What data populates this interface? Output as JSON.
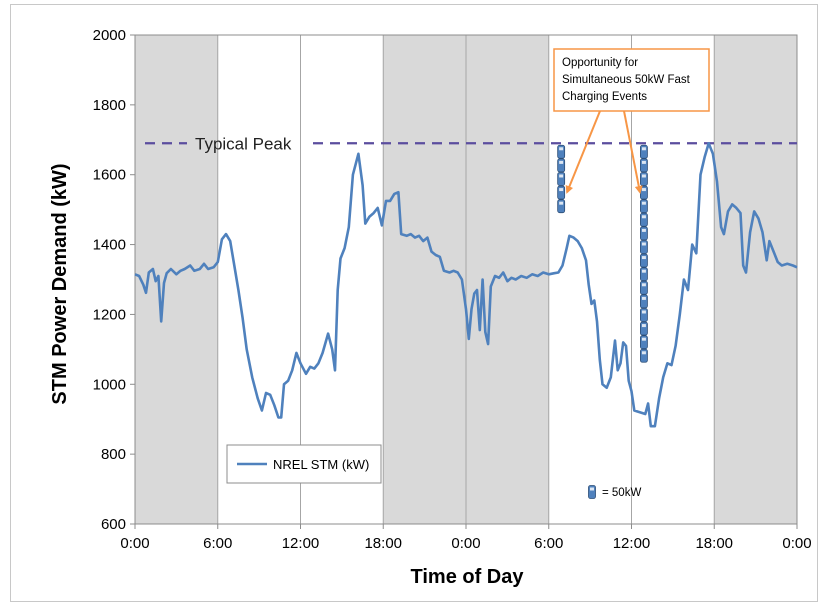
{
  "chart_data": {
    "type": "line",
    "xlabel": "Time of Day",
    "ylabel": "STM Power Demand (kW)",
    "x_ticks": [
      "0:00",
      "6:00",
      "12:00",
      "18:00",
      "0:00",
      "6:00",
      "12:00",
      "18:00",
      "0:00"
    ],
    "x_range_hours": [
      0,
      48
    ],
    "ylim": [
      600,
      2000
    ],
    "y_ticks": [
      600,
      800,
      1000,
      1200,
      1400,
      1600,
      1800,
      2000
    ],
    "shaded_periods_hours": [
      [
        0,
        6
      ],
      [
        18,
        30
      ],
      [
        42,
        48
      ]
    ],
    "grid": false,
    "legend_position": "bottom-left",
    "series": [
      {
        "name": "NREL STM (kW)",
        "color": "#4f81bd",
        "points": [
          [
            0.0,
            1315
          ],
          [
            0.3,
            1310
          ],
          [
            0.6,
            1285
          ],
          [
            0.8,
            1262
          ],
          [
            1.0,
            1320
          ],
          [
            1.3,
            1330
          ],
          [
            1.5,
            1295
          ],
          [
            1.7,
            1310
          ],
          [
            1.9,
            1180
          ],
          [
            2.1,
            1290
          ],
          [
            2.3,
            1318
          ],
          [
            2.6,
            1330
          ],
          [
            3.0,
            1315
          ],
          [
            3.3,
            1325
          ],
          [
            3.6,
            1330
          ],
          [
            4.0,
            1340
          ],
          [
            4.3,
            1325
          ],
          [
            4.7,
            1330
          ],
          [
            5.0,
            1345
          ],
          [
            5.3,
            1330
          ],
          [
            5.7,
            1335
          ],
          [
            6.0,
            1350
          ],
          [
            6.3,
            1415
          ],
          [
            6.6,
            1430
          ],
          [
            6.9,
            1410
          ],
          [
            7.2,
            1340
          ],
          [
            7.5,
            1270
          ],
          [
            7.8,
            1190
          ],
          [
            8.1,
            1100
          ],
          [
            8.5,
            1020
          ],
          [
            8.9,
            960
          ],
          [
            9.2,
            925
          ],
          [
            9.5,
            975
          ],
          [
            9.8,
            970
          ],
          [
            10.1,
            940
          ],
          [
            10.4,
            905
          ],
          [
            10.6,
            905
          ],
          [
            10.8,
            1000
          ],
          [
            11.1,
            1010
          ],
          [
            11.4,
            1040
          ],
          [
            11.7,
            1090
          ],
          [
            12.0,
            1060
          ],
          [
            12.4,
            1030
          ],
          [
            12.7,
            1050
          ],
          [
            13.0,
            1045
          ],
          [
            13.3,
            1060
          ],
          [
            13.6,
            1090
          ],
          [
            14.0,
            1145
          ],
          [
            14.3,
            1100
          ],
          [
            14.5,
            1040
          ],
          [
            14.7,
            1270
          ],
          [
            14.9,
            1360
          ],
          [
            15.2,
            1390
          ],
          [
            15.5,
            1450
          ],
          [
            15.8,
            1600
          ],
          [
            16.2,
            1660
          ],
          [
            16.5,
            1570
          ],
          [
            16.7,
            1460
          ],
          [
            17.0,
            1480
          ],
          [
            17.3,
            1490
          ],
          [
            17.6,
            1505
          ],
          [
            17.9,
            1455
          ],
          [
            18.2,
            1525
          ],
          [
            18.5,
            1525
          ],
          [
            18.8,
            1545
          ],
          [
            19.1,
            1550
          ],
          [
            19.3,
            1430
          ],
          [
            19.7,
            1425
          ],
          [
            20.0,
            1430
          ],
          [
            20.3,
            1420
          ],
          [
            20.6,
            1425
          ],
          [
            20.9,
            1410
          ],
          [
            21.2,
            1420
          ],
          [
            21.5,
            1380
          ],
          [
            21.8,
            1370
          ],
          [
            22.1,
            1365
          ],
          [
            22.4,
            1325
          ],
          [
            22.8,
            1320
          ],
          [
            23.1,
            1325
          ],
          [
            23.4,
            1320
          ],
          [
            23.7,
            1300
          ],
          [
            24.0,
            1215
          ],
          [
            24.2,
            1130
          ],
          [
            24.4,
            1215
          ],
          [
            24.6,
            1260
          ],
          [
            24.8,
            1270
          ],
          [
            25.0,
            1155
          ],
          [
            25.2,
            1300
          ],
          [
            25.4,
            1150
          ],
          [
            25.6,
            1115
          ],
          [
            25.8,
            1280
          ],
          [
            26.1,
            1310
          ],
          [
            26.4,
            1305
          ],
          [
            26.7,
            1320
          ],
          [
            27.0,
            1295
          ],
          [
            27.3,
            1305
          ],
          [
            27.6,
            1300
          ],
          [
            28.0,
            1310
          ],
          [
            28.4,
            1305
          ],
          [
            28.8,
            1315
          ],
          [
            29.2,
            1310
          ],
          [
            29.6,
            1320
          ],
          [
            30.0,
            1315
          ],
          [
            30.4,
            1318
          ],
          [
            30.7,
            1320
          ],
          [
            31.0,
            1340
          ],
          [
            31.3,
            1390
          ],
          [
            31.5,
            1425
          ],
          [
            31.8,
            1420
          ],
          [
            32.1,
            1410
          ],
          [
            32.4,
            1390
          ],
          [
            32.7,
            1355
          ],
          [
            32.9,
            1285
          ],
          [
            33.1,
            1230
          ],
          [
            33.3,
            1240
          ],
          [
            33.5,
            1180
          ],
          [
            33.7,
            1070
          ],
          [
            33.9,
            1000
          ],
          [
            34.2,
            990
          ],
          [
            34.5,
            1020
          ],
          [
            34.8,
            1125
          ],
          [
            35.0,
            1040
          ],
          [
            35.2,
            1060
          ],
          [
            35.4,
            1120
          ],
          [
            35.6,
            1110
          ],
          [
            35.8,
            1010
          ],
          [
            36.0,
            980
          ],
          [
            36.2,
            925
          ],
          [
            36.6,
            920
          ],
          [
            37.0,
            915
          ],
          [
            37.2,
            945
          ],
          [
            37.4,
            880
          ],
          [
            37.7,
            880
          ],
          [
            38.0,
            960
          ],
          [
            38.3,
            1020
          ],
          [
            38.6,
            1060
          ],
          [
            38.9,
            1055
          ],
          [
            39.2,
            1110
          ],
          [
            39.5,
            1200
          ],
          [
            39.8,
            1300
          ],
          [
            40.1,
            1270
          ],
          [
            40.4,
            1400
          ],
          [
            40.7,
            1375
          ],
          [
            41.0,
            1600
          ],
          [
            41.3,
            1650
          ],
          [
            41.6,
            1690
          ],
          [
            41.9,
            1660
          ],
          [
            42.2,
            1580
          ],
          [
            42.5,
            1450
          ],
          [
            42.7,
            1430
          ],
          [
            43.0,
            1495
          ],
          [
            43.3,
            1515
          ],
          [
            43.6,
            1505
          ],
          [
            43.9,
            1490
          ],
          [
            44.1,
            1340
          ],
          [
            44.3,
            1320
          ],
          [
            44.6,
            1435
          ],
          [
            44.9,
            1495
          ],
          [
            45.2,
            1475
          ],
          [
            45.5,
            1435
          ],
          [
            45.8,
            1355
          ],
          [
            46.0,
            1410
          ],
          [
            46.3,
            1380
          ],
          [
            46.6,
            1350
          ],
          [
            46.9,
            1340
          ],
          [
            47.3,
            1345
          ],
          [
            47.7,
            1340
          ],
          [
            48.0,
            1335
          ]
        ]
      }
    ],
    "reference_lines": [
      {
        "label": "Typical Peak",
        "y": 1690,
        "color": "#5b4d9e",
        "style": "dashed"
      }
    ],
    "annotations": {
      "callout_text": [
        "Opportunity for",
        "Simultaneous 50kW Fast",
        "Charging Events"
      ],
      "callout_color": "#f79646",
      "charging_stacks": [
        {
          "x": 30.9,
          "count": 5,
          "top_kw": 1690
        },
        {
          "x": 36.9,
          "count": 16,
          "top_kw": 1690
        }
      ],
      "unit_legend": "= 50kW",
      "charger_color": "#4f81bd"
    }
  }
}
